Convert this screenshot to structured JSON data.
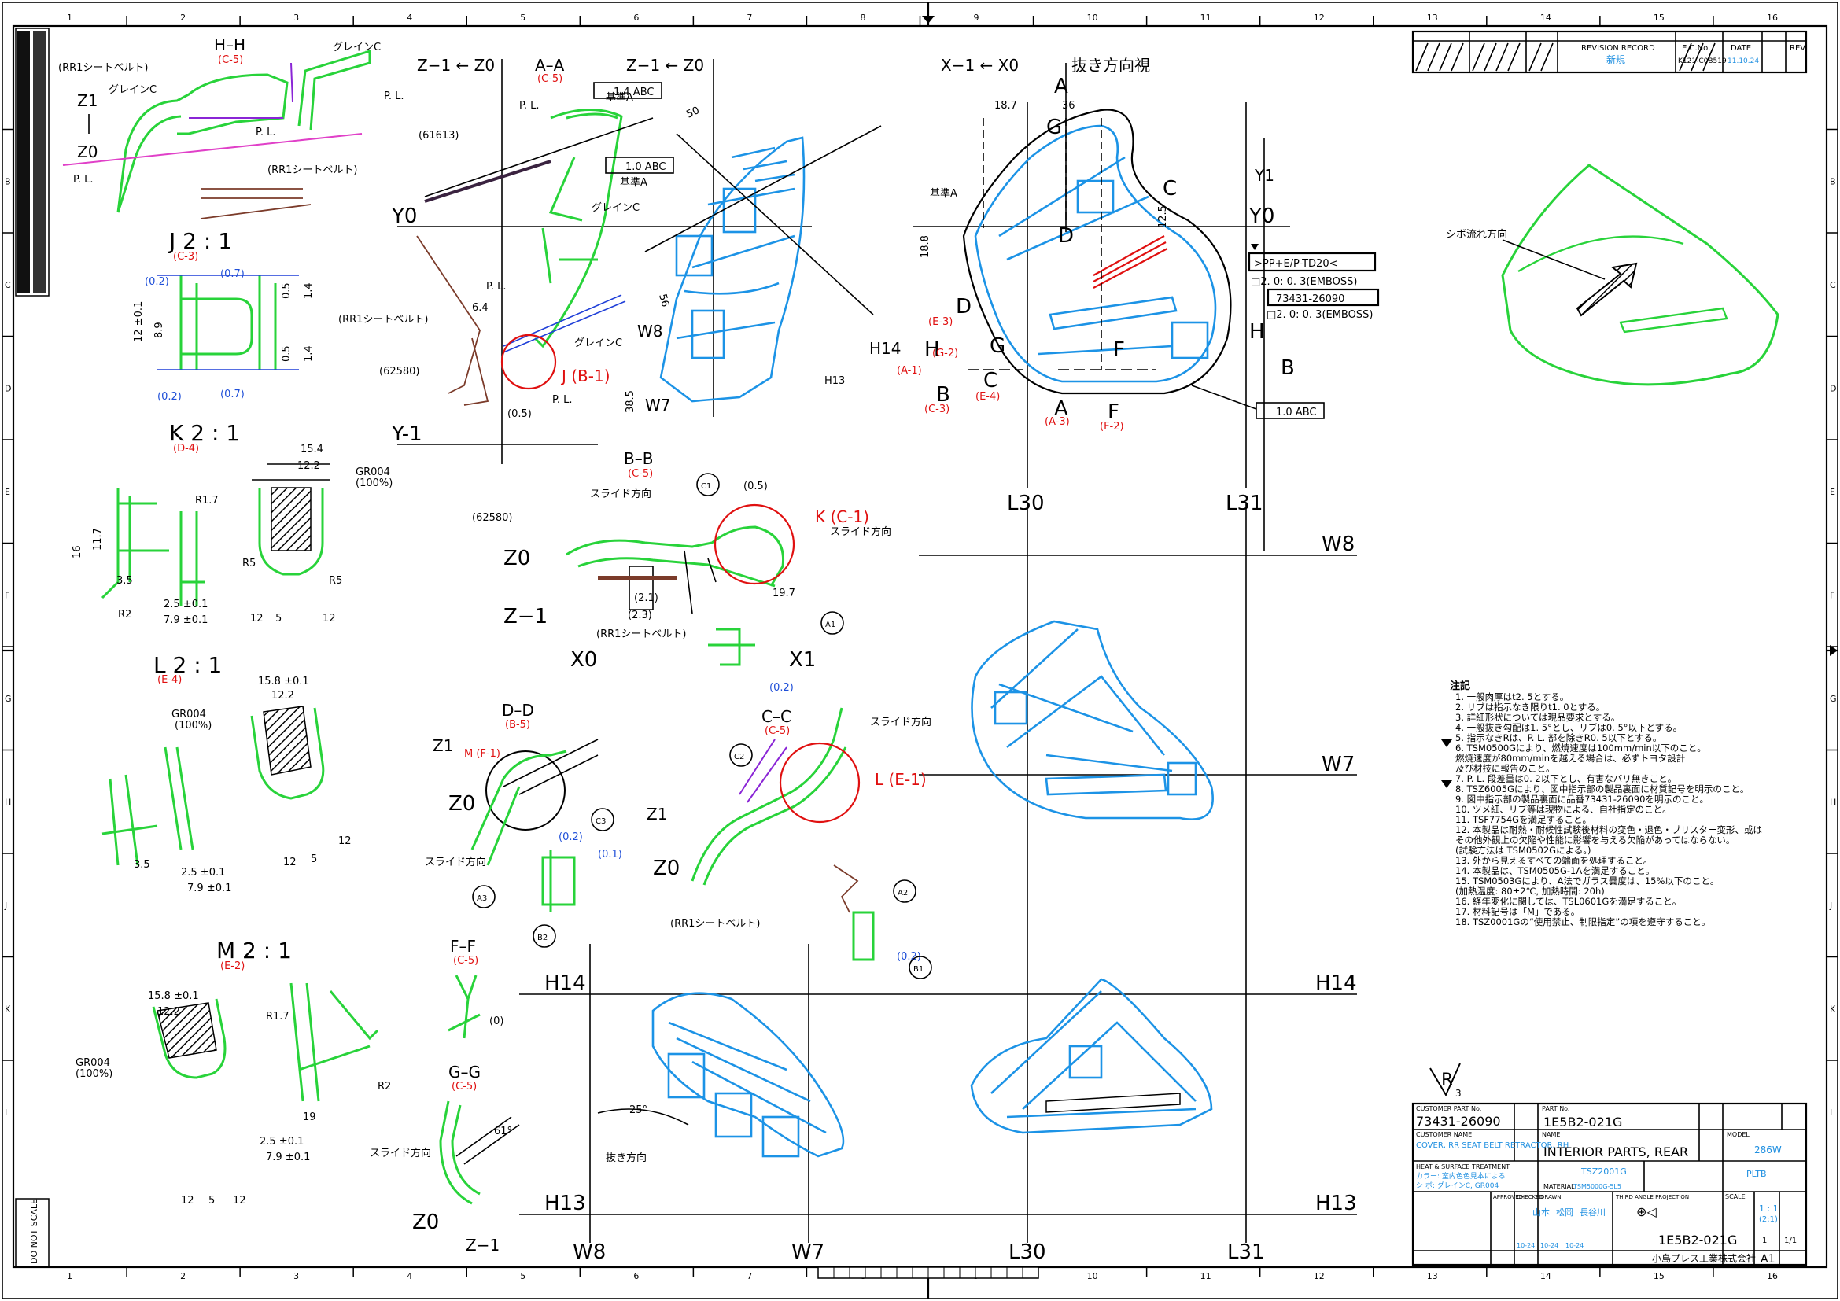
{
  "border": {
    "zone_cols_top": [
      "1",
      "2",
      "3",
      "4",
      "5",
      "6",
      "7",
      "8",
      "9",
      "10",
      "11",
      "12",
      "13",
      "14",
      "15",
      "16"
    ],
    "zone_cols_bottom": [
      "1",
      "2",
      "3",
      "4",
      "5",
      "6",
      "7",
      "8",
      "9",
      "10",
      "11",
      "12",
      "13",
      "14",
      "15",
      "16"
    ],
    "zone_rows": [
      "B",
      "C",
      "D",
      "E",
      "F",
      "G",
      "H",
      "J",
      "K",
      "L"
    ],
    "do_not_scale": "DO NOT SCALE"
  },
  "datum_lines": {
    "Y0": "Y0",
    "Y0_right": "Y0",
    "Y1": "Y1",
    "Y_minus1": "Y-1",
    "L30_top": "L30",
    "L31_top": "L31",
    "W8_right": "W8",
    "W7_right": "W7",
    "H14_left": "H14",
    "H14_right": "H14",
    "H13_left": "H13",
    "H13_right": "H13",
    "W8_bottom": "W8",
    "W7_bottom": "W7",
    "L30_bottom": "L30",
    "L31_bottom": "L31",
    "H14_mid": "H14",
    "H13_mid": "H13",
    "W8_mid": "W8",
    "W7_mid": "W7",
    "X0_axis": "X−1 ← X0",
    "pull_view": "抜き方向視",
    "Z_axis_1": "Z−1 ← Z0",
    "Z_axis_2": "Z−1 ← Z0"
  },
  "sections": {
    "HH": {
      "title": "H–H",
      "ref": "(C-5)"
    },
    "AA": {
      "title": "A–A",
      "ref": "(C-5)"
    },
    "J": {
      "title": "J 2 : 1",
      "ref": "(C-3)"
    },
    "K": {
      "title": "K 2 : 1",
      "ref": "(D-4)"
    },
    "L": {
      "title": "L 2 : 1",
      "ref": "(E-4)"
    },
    "M": {
      "title": "M 2 : 1",
      "ref": "(E-2)"
    },
    "BB": {
      "title": "B–B",
      "ref": "(C-5)"
    },
    "DD": {
      "title": "D–D",
      "ref": "(B-5)"
    },
    "CC": {
      "title": "C–C",
      "ref": "(C-5)"
    },
    "FF": {
      "title": "F–F",
      "ref": "(C-5)"
    },
    "GG": {
      "title": "G–G",
      "ref": "(C-5)"
    }
  },
  "callouts": {
    "rr1_belt": "(RR1シートベルト)",
    "grain_c": "グレインC",
    "pl": "P. L.",
    "part_61613": "(61613)",
    "part_62580": "(62580)",
    "slide_dir": "スライド方向",
    "pull_dir": "抜き方向",
    "gr004": "GR004",
    "gr004_pct": "(100%)",
    "emboss_1": "□2. 0: 0. 3(EMBOSS)",
    "emboss_2": "□2. 0: 0. 3(EMBOSS)",
    "material_mark": ">PP+E/P-TD20<",
    "part_mark": "73431-26090",
    "grain_dir": "シボ流れ方向",
    "datum_a": "基準A",
    "tol_1": "1.4  ABC",
    "tol_2": "1.0  ABC",
    "tol_3": "1.0  ABC",
    "k_ref": "K (C-1)",
    "j_ref": "J (B-1)",
    "l_ref": "L (E-1)",
    "m_ref": "M (F-1)"
  },
  "notes": {
    "title": "注記",
    "lines": [
      "1. 一般肉厚はt2. 5とする。",
      "2. リブは指示なき限りt1. 0とする。",
      "3. 詳細形状については現品要求とする。",
      "4. 一般抜き勾配は1. 5°とし、リブは0. 5°以下とする。",
      "5. 指示なきRは、P. L. 部を除きR0. 5以下とする。",
      "6. TSM0500Gにより、燃焼速度は100mm/min以下のこと。",
      "   燃焼速度が80mm/minを越える場合は、必ずトヨタ設計",
      "   及び材技に報告のこと。",
      "7. P. L. 段差量は0. 2以下とし、有害なバリ無きこと。",
      "8. TSZ6005Gにより、図中指示部の製品裏面に材質記号を明示のこと。",
      "9. 図中指示部の製品裏面に品番73431-26090を明示のこと。",
      "10. ツメ細、リブ等は現物による、自社指定のこと。",
      "11. TSF7754Gを満足すること。",
      "12. 本製品は耐熱・耐候性試験後材料の変色・退色・ブリスター変形、或は",
      "    その他外観上の欠陥や性能に影響を与える欠陥があってはならない。",
      "    (試験方法は  TSM0502Gによる。)",
      "13. 外から見えるすべての端面を処理すること。",
      "14. 本製品は、TSM0505G-1Aを満足すること。",
      "15. TSM0503Gにより、A法でガラス曇度は、15%以下のこと。",
      "    (加熱温度: 80±2℃, 加熱時間: 20h)",
      "16. 経年変化に関しては、TSL0601Gを満足すること。",
      "17. 材料記号は「M」である。",
      "18. TSZ0001Gの“使用禁止、制限指定”の項を遵守すること。"
    ]
  },
  "revision_block": {
    "header": "REVISION RECORD",
    "ecn_header": "E.C.No.",
    "date_header": "DATE",
    "rev_header": "REV.",
    "revision_text": "新規",
    "ecn": "K121-C0B519",
    "date": "11.10.24"
  },
  "title_block": {
    "customer_part_no_label": "CUSTOMER PART No.",
    "customer_part_no": "73431-26090",
    "customer_name_label": "CUSTOMER NAME",
    "customer_name": "COVER, RR SEAT BELT RETRACTOR, RH",
    "part_no_label": "PART No.",
    "part_no": "1E5B2-021G",
    "part_name_label": "NAME",
    "part_name": "INTERIOR PARTS, REAR",
    "model_label": "MODEL",
    "model": "286W",
    "treatment_label": "HEAT & SURFACE TREATMENT",
    "color_line": "カラー: 室内色色見本による",
    "grain_line": "シ ボ: グレインC, GR004",
    "material_std": "TSZ2001G",
    "material_code": "PLTB",
    "material_label": "MATERIAL",
    "material_spec": "TSM5000G-5L5",
    "approved_label": "APPROVED",
    "checked_label": "CHECKED",
    "drawn_label": "DRAWN",
    "approver": "山本",
    "checker": "松岡",
    "drawer": "長谷川",
    "date_1": "10-24",
    "date_2": "10-24",
    "date_3": "10-24",
    "scale_label": "SCALE",
    "scale_value": "1 : 1",
    "scale_alt": "(2:1)",
    "projection": "THIRD ANGLE PROJECTION",
    "dwg_no": "1E5B2-021G",
    "sheet": "1/1",
    "rev": "1",
    "company": "小島プレス工業株式会社",
    "size": "A1",
    "finish_mark": "R",
    "finish_sub": "3"
  }
}
